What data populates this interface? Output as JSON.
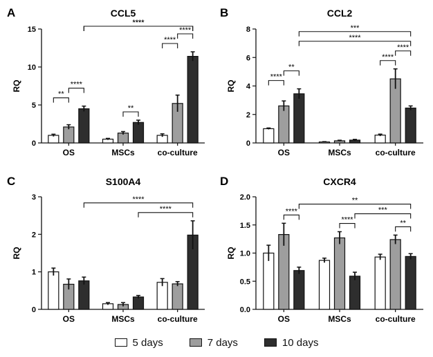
{
  "legend": [
    {
      "label": "5 days",
      "color": "#ffffff"
    },
    {
      "label": "7 days",
      "color": "#9e9e9e"
    },
    {
      "label": "10 days",
      "color": "#2e2e2e"
    }
  ],
  "chart_data": [
    {
      "panel": "A",
      "type": "bar",
      "title": "CCL5",
      "ylabel": "RQ",
      "xlabel": "",
      "categories": [
        "OS",
        "MSCs",
        "co-culture"
      ],
      "ylim": [
        0,
        15
      ],
      "yticks": [
        "0",
        "5",
        "10",
        "15"
      ],
      "grid": false,
      "series": [
        {
          "name": "5 days",
          "values": [
            1.0,
            0.5,
            1.0
          ],
          "errors": [
            0.15,
            0.1,
            0.2
          ]
        },
        {
          "name": "7 days",
          "values": [
            2.1,
            1.3,
            5.2
          ],
          "errors": [
            0.3,
            0.2,
            1.1
          ]
        },
        {
          "name": "10 days",
          "values": [
            4.5,
            2.7,
            11.4
          ],
          "errors": [
            0.35,
            0.3,
            0.6
          ]
        }
      ],
      "annotations": [
        {
          "label": "**",
          "from": [
            0,
            0
          ],
          "to": [
            0,
            1
          ]
        },
        {
          "label": "****",
          "from": [
            0,
            1
          ],
          "to": [
            0,
            2
          ]
        },
        {
          "label": "**",
          "from": [
            1,
            1
          ],
          "to": [
            1,
            2
          ]
        },
        {
          "label": "****",
          "from": [
            2,
            0
          ],
          "to": [
            2,
            1
          ]
        },
        {
          "label": "****",
          "from": [
            2,
            1
          ],
          "to": [
            2,
            2
          ]
        },
        {
          "label": "****",
          "from": [
            0,
            2
          ],
          "to": [
            2,
            2
          ]
        },
        {
          "label": "****",
          "from": [
            0,
            2
          ],
          "to": [
            2,
            2
          ]
        }
      ]
    },
    {
      "panel": "B",
      "type": "bar",
      "title": "CCL2",
      "ylabel": "RQ",
      "xlabel": "",
      "categories": [
        "OS",
        "MSCs",
        "co-culture"
      ],
      "ylim": [
        0,
        8
      ],
      "yticks": [
        "0",
        "2",
        "4",
        "6",
        "8"
      ],
      "grid": false,
      "series": [
        {
          "name": "5 days",
          "values": [
            1.0,
            0.07,
            0.55
          ],
          "errors": [
            0.05,
            0.02,
            0.07
          ]
        },
        {
          "name": "7 days",
          "values": [
            2.6,
            0.15,
            4.5
          ],
          "errors": [
            0.35,
            0.04,
            0.7
          ]
        },
        {
          "name": "10 days",
          "values": [
            3.45,
            0.2,
            2.45
          ],
          "errors": [
            0.35,
            0.05,
            0.15
          ]
        }
      ],
      "annotations": [
        {
          "label": "****",
          "from": [
            0,
            0
          ],
          "to": [
            0,
            1
          ]
        },
        {
          "label": "**",
          "from": [
            0,
            1
          ],
          "to": [
            0,
            2
          ]
        },
        {
          "label": "****",
          "from": [
            2,
            0
          ],
          "to": [
            2,
            1
          ]
        },
        {
          "label": "****",
          "from": [
            2,
            1
          ],
          "to": [
            2,
            2
          ]
        },
        {
          "label": "****",
          "from": [
            0,
            2
          ],
          "to": [
            2,
            2
          ]
        },
        {
          "label": "***",
          "from": [
            0,
            2
          ],
          "to": [
            2,
            2
          ]
        }
      ]
    },
    {
      "panel": "C",
      "type": "bar",
      "title": "S100A4",
      "ylabel": "RQ",
      "xlabel": "",
      "categories": [
        "OS",
        "MSCs",
        "co-culture"
      ],
      "ylim": [
        0,
        3
      ],
      "yticks": [
        "0",
        "1",
        "2",
        "3"
      ],
      "grid": false,
      "series": [
        {
          "name": "5 days",
          "values": [
            1.0,
            0.15,
            0.72
          ],
          "errors": [
            0.1,
            0.03,
            0.1
          ]
        },
        {
          "name": "7 days",
          "values": [
            0.67,
            0.13,
            0.68
          ],
          "errors": [
            0.14,
            0.05,
            0.06
          ]
        },
        {
          "name": "10 days",
          "values": [
            0.76,
            0.33,
            1.98
          ],
          "errors": [
            0.1,
            0.04,
            0.38
          ]
        }
      ],
      "annotations": [
        {
          "label": "****",
          "from": [
            1,
            2
          ],
          "to": [
            2,
            2
          ]
        },
        {
          "label": "****",
          "from": [
            0,
            2
          ],
          "to": [
            2,
            2
          ]
        }
      ]
    },
    {
      "panel": "D",
      "type": "bar",
      "title": "CXCR4",
      "ylabel": "RQ",
      "xlabel": "",
      "categories": [
        "OS",
        "MSCs",
        "co-culture"
      ],
      "ylim": [
        0,
        2
      ],
      "yticks": [
        "0.0",
        "0.5",
        "1.0",
        "1.5",
        "2.0"
      ],
      "grid": false,
      "series": [
        {
          "name": "5 days",
          "values": [
            1.0,
            0.87,
            0.93
          ],
          "errors": [
            0.14,
            0.04,
            0.05
          ]
        },
        {
          "name": "7 days",
          "values": [
            1.33,
            1.27,
            1.24
          ],
          "errors": [
            0.2,
            0.11,
            0.08
          ]
        },
        {
          "name": "10 days",
          "values": [
            0.69,
            0.59,
            0.94
          ],
          "errors": [
            0.06,
            0.07,
            0.05
          ]
        }
      ],
      "annotations": [
        {
          "label": "****",
          "from": [
            0,
            1
          ],
          "to": [
            0,
            2
          ]
        },
        {
          "label": "****",
          "from": [
            1,
            1
          ],
          "to": [
            1,
            2
          ]
        },
        {
          "label": "**",
          "from": [
            2,
            1
          ],
          "to": [
            2,
            2
          ]
        },
        {
          "label": "***",
          "from": [
            1,
            2
          ],
          "to": [
            2,
            2
          ]
        },
        {
          "label": "**",
          "from": [
            0,
            2
          ],
          "to": [
            2,
            2
          ]
        }
      ]
    }
  ]
}
